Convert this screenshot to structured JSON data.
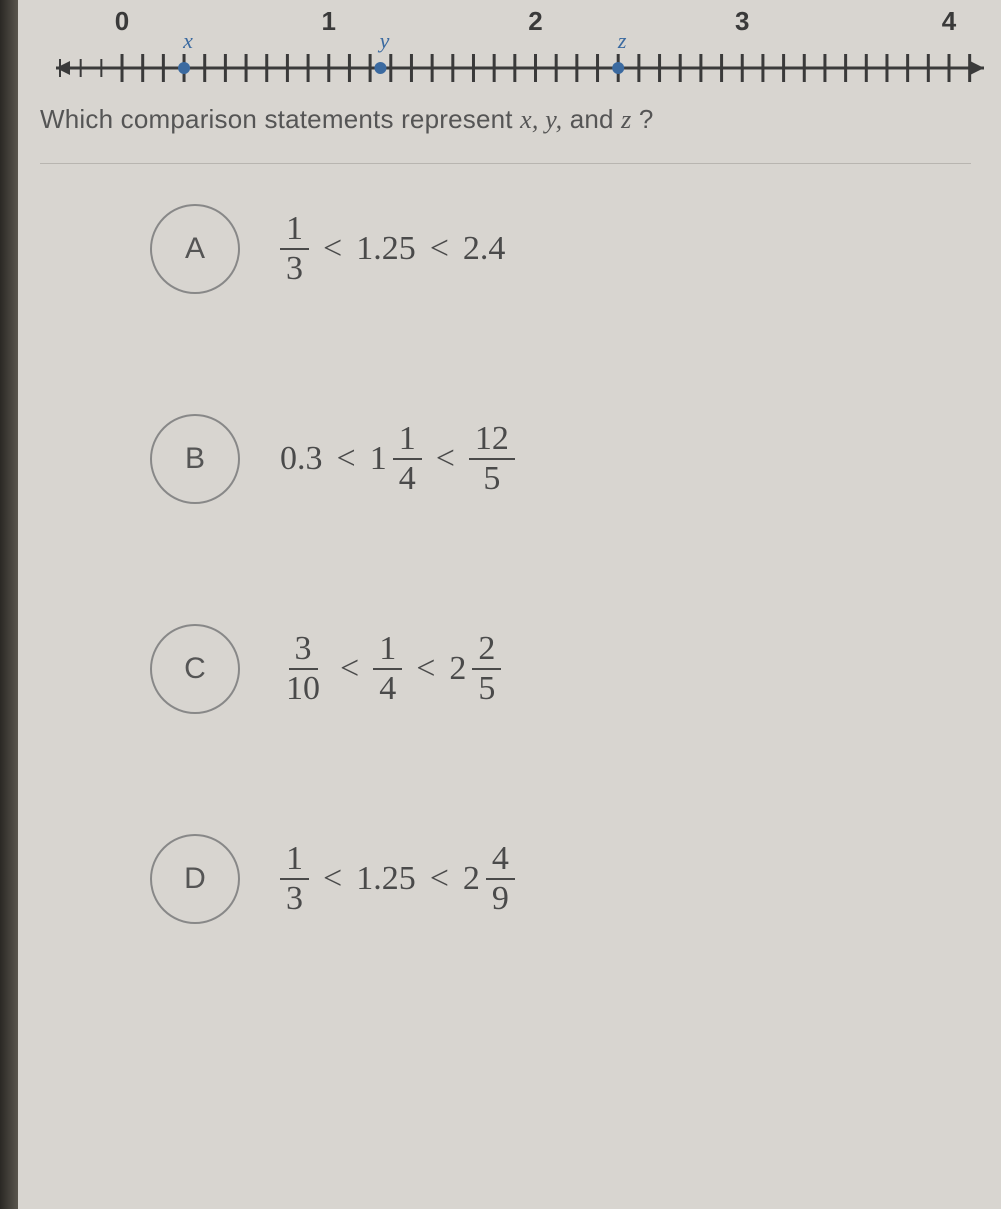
{
  "numberLine": {
    "axis_color": "#3a3a3a",
    "point_color": "#3b6aa0",
    "tick_color": "#3a3a3a",
    "label_color": "#3a3a3a",
    "label_fontsize": 26,
    "var_color": "#3b6aa0",
    "var_fontsize": 22,
    "range_min": -0.3,
    "range_max": 4.15,
    "minor_step": 0.1,
    "majors": [
      0,
      1,
      2,
      3,
      4
    ],
    "major_labels": [
      "0",
      "1",
      "2",
      "3",
      "4"
    ],
    "points": [
      {
        "label": "x",
        "value": 0.3
      },
      {
        "label": "y",
        "value": 1.25
      },
      {
        "label": "z",
        "value": 2.4
      }
    ]
  },
  "question": {
    "prefix": "Which comparison statements represent ",
    "vars": "x, y,",
    "mid": " and ",
    "lastvar": "z",
    "suffix": "?"
  },
  "options": [
    {
      "letter": "A",
      "parts": [
        {
          "type": "frac",
          "num": "1",
          "den": "3"
        },
        {
          "type": "lt"
        },
        {
          "type": "num",
          "val": "1.25"
        },
        {
          "type": "lt"
        },
        {
          "type": "num",
          "val": "2.4"
        }
      ]
    },
    {
      "letter": "B",
      "parts": [
        {
          "type": "num",
          "val": "0.3"
        },
        {
          "type": "lt"
        },
        {
          "type": "mixed",
          "whole": "1",
          "num": "1",
          "den": "4"
        },
        {
          "type": "lt"
        },
        {
          "type": "frac",
          "num": "12",
          "den": "5"
        }
      ]
    },
    {
      "letter": "C",
      "parts": [
        {
          "type": "frac",
          "num": "3",
          "den": "10"
        },
        {
          "type": "lt"
        },
        {
          "type": "frac",
          "num": "1",
          "den": "4"
        },
        {
          "type": "lt"
        },
        {
          "type": "mixed",
          "whole": "2",
          "num": "2",
          "den": "5"
        }
      ]
    },
    {
      "letter": "D",
      "parts": [
        {
          "type": "frac",
          "num": "1",
          "den": "3"
        },
        {
          "type": "lt"
        },
        {
          "type": "num",
          "val": "1.25"
        },
        {
          "type": "lt"
        },
        {
          "type": "mixed",
          "whole": "2",
          "num": "4",
          "den": "9"
        }
      ]
    }
  ]
}
